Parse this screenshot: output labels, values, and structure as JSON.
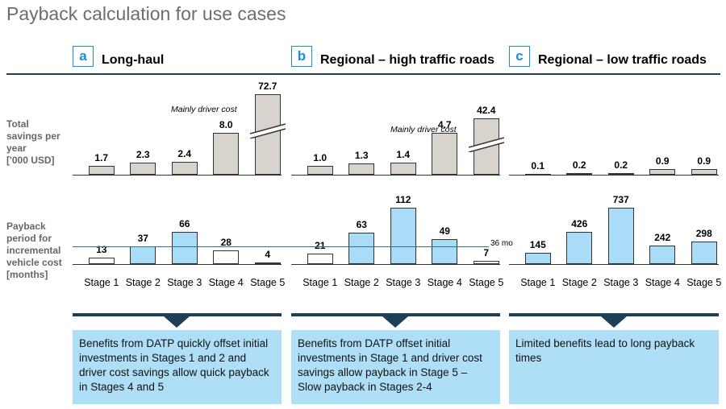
{
  "title": "Payback calculation for use cases",
  "row_labels": {
    "savings": [
      "Total",
      "savings per",
      "year",
      "['000 USD]"
    ],
    "payback": [
      "Payback",
      "period for",
      "incremental",
      "vehicle cost",
      "[months]"
    ]
  },
  "reference_line_label": "36 mo",
  "colors": {
    "accent": "#1a8cd8",
    "dark": "#1d3f57",
    "savings_bar": "#d9d3cd",
    "payback_bar_above": "#a9dcf7",
    "payback_bar_below": "#ffffff",
    "box": "#aedff6"
  },
  "panels": [
    {
      "letter": "a",
      "name": "Long-haul",
      "note": "Mainly driver cost",
      "summary": "Benefits from DATP   quickly offset initial investments in Stages 1 and 2 and driver cost savings allow quick payback in Stages 4 and 5"
    },
    {
      "letter": "b",
      "name": "Regional – high traffic roads",
      "note": "Mainly driver cost",
      "summary": "Benefits from DATP   offset initial investments in Stage 1 and driver cost savings allow payback in Stage 5 – Slow payback in Stages 2-4"
    },
    {
      "letter": "c",
      "name": "Regional – low traffic roads",
      "note": "",
      "summary": "Limited benefits lead to long payback times"
    }
  ],
  "chart_data": [
    {
      "type": "bar",
      "title": "Long-haul",
      "ylabel": "Total savings per year ['000 USD]",
      "categories": [
        "Stage 1",
        "Stage 2",
        "Stage 3",
        "Stage 4",
        "Stage 5"
      ],
      "values": [
        1.7,
        2.3,
        2.4,
        8.0,
        72.7
      ],
      "value_labels": [
        "1.7",
        "2.3",
        "2.4",
        "8.0",
        "72.7"
      ],
      "axis_break": true,
      "annotation": "Mainly driver cost"
    },
    {
      "type": "bar",
      "title": "Regional – high traffic roads",
      "ylabel": "Total savings per year ['000 USD]",
      "categories": [
        "Stage 1",
        "Stage 2",
        "Stage 3",
        "Stage 4",
        "Stage 5"
      ],
      "values": [
        1.0,
        1.3,
        1.4,
        4.7,
        42.4
      ],
      "value_labels": [
        "1.0",
        "1.3",
        "1.4",
        "4.7",
        "42.4"
      ],
      "axis_break": true,
      "annotation": "Mainly driver cost"
    },
    {
      "type": "bar",
      "title": "Regional – low traffic roads",
      "ylabel": "Total savings per year ['000 USD]",
      "categories": [
        "Stage 1",
        "Stage 2",
        "Stage 3",
        "Stage 4",
        "Stage 5"
      ],
      "values": [
        0.1,
        0.2,
        0.2,
        0.9,
        0.9
      ],
      "value_labels": [
        "0.1",
        "0.2",
        "0.2",
        "0.9",
        "0.9"
      ]
    },
    {
      "type": "bar",
      "title": "Long-haul",
      "ylabel": "Payback period for incremental vehicle cost [months]",
      "categories": [
        "Stage 1",
        "Stage 2",
        "Stage 3",
        "Stage 4",
        "Stage 5"
      ],
      "values": [
        13,
        37,
        66,
        28,
        4
      ],
      "value_labels": [
        "13",
        "37",
        "66",
        "28",
        "4"
      ],
      "reference_line": 36
    },
    {
      "type": "bar",
      "title": "Regional – high traffic roads",
      "ylabel": "Payback period for incremental vehicle cost [months]",
      "categories": [
        "Stage 1",
        "Stage 2",
        "Stage 3",
        "Stage 4",
        "Stage 5"
      ],
      "values": [
        21,
        63,
        112,
        49,
        7
      ],
      "value_labels": [
        "21",
        "63",
        "112",
        "49",
        "7"
      ],
      "reference_line": 36
    },
    {
      "type": "bar",
      "title": "Regional – low traffic roads",
      "ylabel": "Payback period for incremental vehicle cost [months]",
      "categories": [
        "Stage 1",
        "Stage 2",
        "Stage 3",
        "Stage 4",
        "Stage 5"
      ],
      "values": [
        145,
        426,
        737,
        242,
        298
      ],
      "value_labels": [
        "145",
        "426",
        "737",
        "242",
        "298"
      ],
      "reference_line": 36
    }
  ]
}
